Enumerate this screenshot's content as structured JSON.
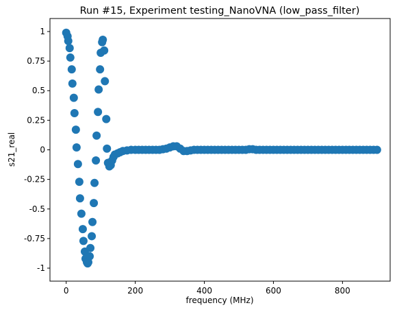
{
  "chart_data": {
    "type": "scatter",
    "title": "Run #15, Experiment testing_NanoVNA (low_pass_filter)",
    "x_label": "frequency (MHz)",
    "y_label": "s21_real",
    "color": "#1f77b4",
    "x": [
      0,
      4,
      6,
      10,
      12,
      16,
      18,
      22,
      24,
      28,
      30,
      34,
      38,
      40,
      44,
      48,
      50,
      54,
      56,
      60,
      62,
      64,
      68,
      70,
      74,
      76,
      80,
      82,
      86,
      88,
      92,
      94,
      98,
      100,
      104,
      106,
      110,
      112,
      116,
      118,
      121,
      125,
      129,
      133,
      137,
      141,
      149,
      156,
      164,
      176,
      188,
      200,
      210,
      220,
      230,
      240,
      250,
      260,
      270,
      280,
      290,
      300,
      310,
      320,
      330,
      340,
      350,
      360,
      370,
      380,
      390,
      400,
      410,
      420,
      430,
      440,
      450,
      460,
      470,
      480,
      490,
      500,
      510,
      520,
      530,
      540,
      550,
      560,
      570,
      580,
      590,
      600,
      610,
      620,
      630,
      640,
      650,
      660,
      670,
      680,
      690,
      700,
      710,
      720,
      730,
      740,
      750,
      760,
      770,
      780,
      790,
      800,
      810,
      820,
      830,
      840,
      850,
      860,
      870,
      880,
      890,
      900
    ],
    "values": [
      0.99,
      0.96,
      0.92,
      0.86,
      0.78,
      0.68,
      0.56,
      0.44,
      0.31,
      0.17,
      0.02,
      -0.12,
      -0.27,
      -0.41,
      -0.54,
      -0.67,
      -0.77,
      -0.86,
      -0.92,
      -0.95,
      -0.96,
      -0.95,
      -0.9,
      -0.83,
      -0.73,
      -0.61,
      -0.45,
      -0.28,
      -0.09,
      0.12,
      0.32,
      0.51,
      0.68,
      0.82,
      0.91,
      0.93,
      0.84,
      0.58,
      0.26,
      0.01,
      -0.11,
      -0.14,
      -0.13,
      -0.09,
      -0.06,
      -0.04,
      -0.03,
      -0.02,
      -0.01,
      -0.005,
      0,
      0,
      0,
      0,
      0,
      0,
      0,
      0,
      0,
      0.005,
      0.01,
      0.02,
      0.03,
      0.03,
      0.01,
      -0.01,
      -0.01,
      -0.005,
      0,
      0,
      0,
      0,
      0,
      0,
      0,
      0,
      0,
      0,
      0,
      0,
      0,
      0,
      0,
      0,
      0.005,
      0.005,
      0,
      0,
      0,
      0,
      0,
      0,
      0,
      0,
      0,
      0,
      0,
      0,
      0,
      0,
      0,
      0,
      0,
      0,
      0,
      0,
      0,
      0,
      0,
      0,
      0,
      0,
      0,
      0,
      0,
      0,
      0,
      0,
      0,
      0,
      0,
      0
    ],
    "xlim": [
      -47,
      938
    ],
    "ylim": [
      -1.11,
      1.11
    ],
    "xticks": [
      0,
      200,
      400,
      600,
      800
    ],
    "yticks": [
      1,
      0.75,
      0.5,
      0.25,
      0,
      -0.25,
      -0.5,
      -0.75,
      -1
    ]
  }
}
